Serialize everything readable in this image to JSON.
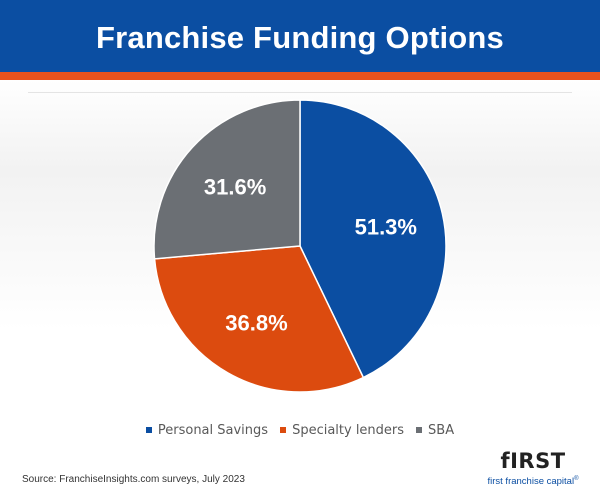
{
  "header": {
    "title": "Franchise Funding Options"
  },
  "chart_data": {
    "type": "pie",
    "title": "Franchise Funding Options",
    "start_angle_deg": 0,
    "direction": "clockwise",
    "slices": [
      {
        "label": "Personal Savings",
        "value": 51.3,
        "display": "51.3%",
        "color": "#0b4ea2"
      },
      {
        "label": "Specialty lenders",
        "value": 36.8,
        "display": "36.8%",
        "color": "#dc4b0f"
      },
      {
        "label": "SBA",
        "value": 31.6,
        "display": "31.6%",
        "color": "#6b6f74"
      }
    ],
    "legend_position": "bottom"
  },
  "footer": {
    "source": "Source: FranchiseInsights.com surveys, July 2023",
    "logo_word": "fIRST",
    "logo_sub": "first franchise capital",
    "logo_mark": "®"
  }
}
